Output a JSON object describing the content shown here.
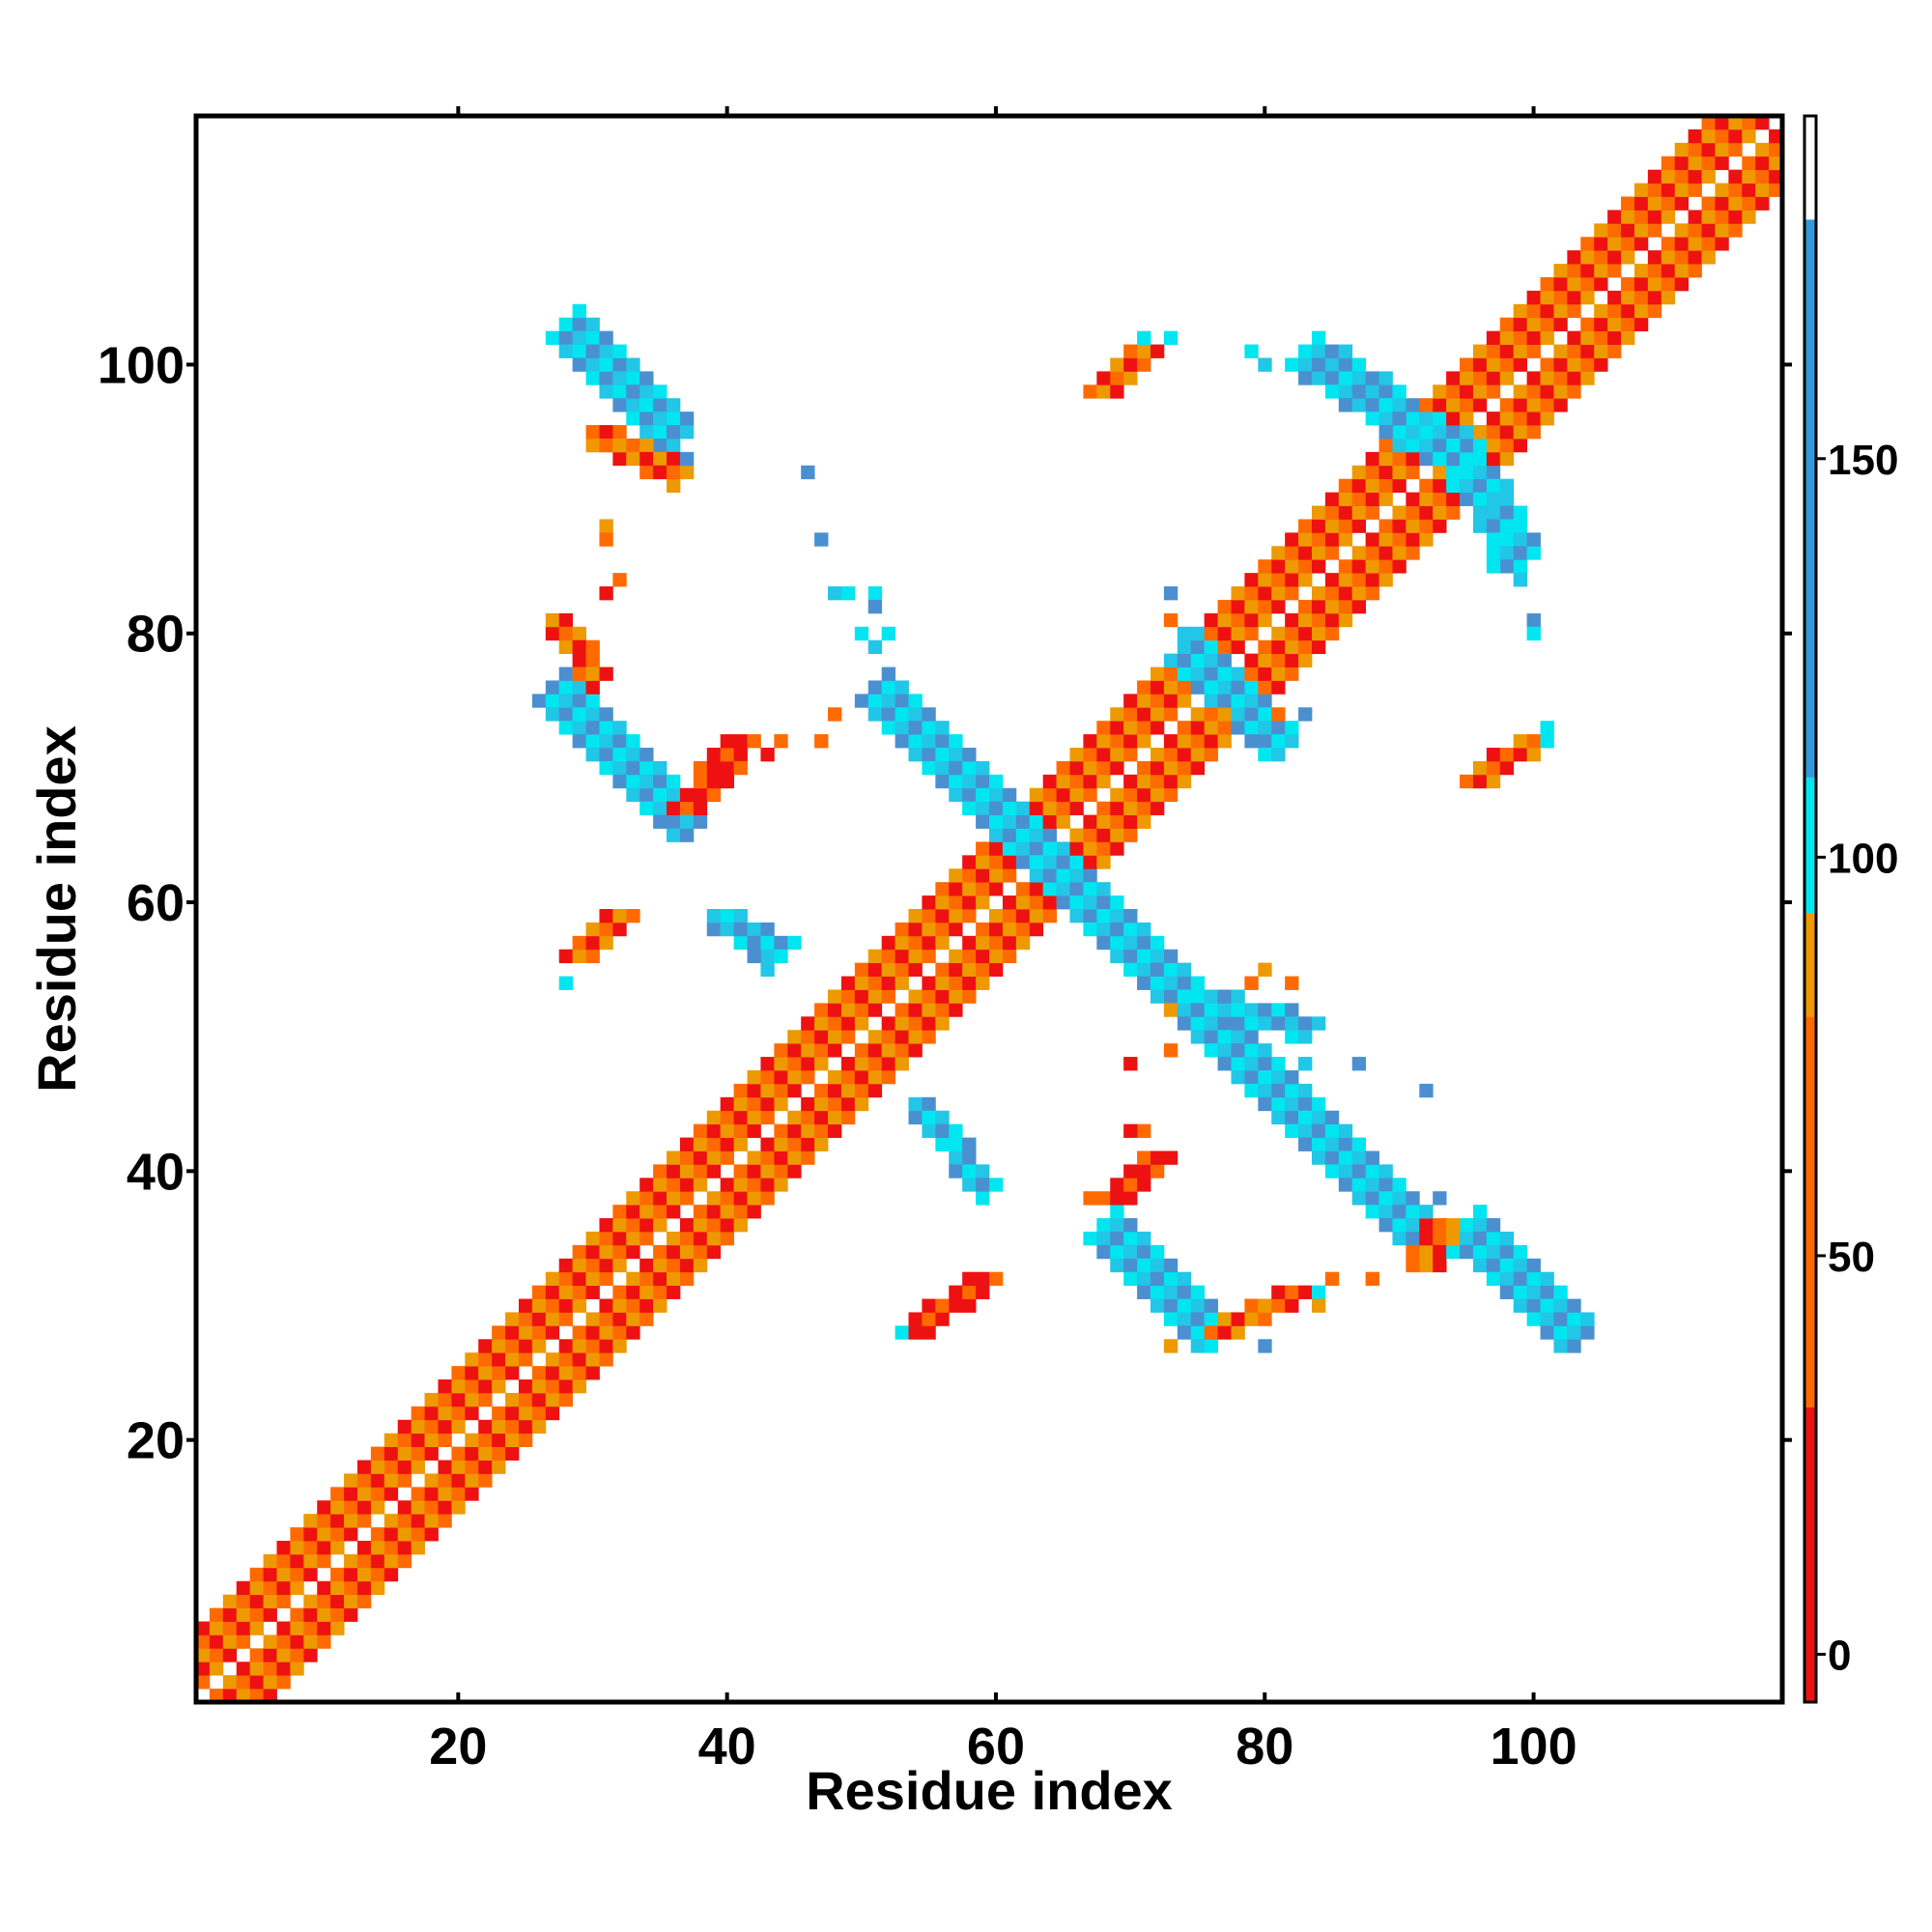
{
  "chart_data": {
    "type": "heatmap",
    "title": "",
    "xlabel": "Residue index",
    "ylabel": "Residue index",
    "xlim": [
      1,
      118
    ],
    "ylim": [
      1,
      118
    ],
    "xticks": [
      20,
      40,
      60,
      80,
      100
    ],
    "yticks": [
      20,
      40,
      60,
      80,
      100
    ],
    "colorbar": {
      "ticks": [
        0,
        50,
        100,
        150
      ],
      "range": [
        -6,
        193
      ],
      "stops": [
        {
          "from": -6,
          "to": 31,
          "color": "#ee1111"
        },
        {
          "from": 31,
          "to": 80,
          "color": "#ff6a00"
        },
        {
          "from": 80,
          "to": 93,
          "color": "#ee9900"
        },
        {
          "from": 93,
          "to": 110,
          "color": "#00e6f0"
        },
        {
          "from": 110,
          "to": 180,
          "color": "#3399dd"
        },
        {
          "from": 180,
          "to": 193,
          "color": "#ffffff"
        }
      ]
    },
    "palette": {
      "red": "#ee1111",
      "orange": "#ff6a00",
      "amber": "#ee9900",
      "cyan": "#00e6f0",
      "lightblue": "#22c6e6",
      "blue": "#4a90d0"
    },
    "segments": [
      {
        "x0": 1,
        "y0": 1,
        "x1": 118,
        "y1": 118,
        "w": 5,
        "colors": [
          "orange",
          "cyan",
          "red",
          "orange",
          "amber",
          "cyan"
        ]
      },
      {
        "x0": 28,
        "y0": 103,
        "x1": 36,
        "y1": 95,
        "w": 2,
        "colors": [
          "blue",
          "cyan",
          "lightblue"
        ]
      },
      {
        "x0": 27,
        "y0": 76,
        "x1": 37,
        "y1": 66,
        "w": 2,
        "colors": [
          "blue",
          "lightblue",
          "cyan"
        ]
      },
      {
        "x0": 51,
        "y0": 76,
        "x1": 93,
        "y1": 34,
        "w": 2,
        "colors": [
          "blue",
          "lightblue",
          "cyan"
        ]
      },
      {
        "x0": 68,
        "y0": 36,
        "x1": 76,
        "y1": 28,
        "w": 2,
        "colors": [
          "blue",
          "lightblue",
          "cyan"
        ]
      },
      {
        "x0": 95,
        "y0": 36,
        "x1": 103,
        "y1": 28,
        "w": 2,
        "colors": [
          "blue",
          "lightblue",
          "cyan"
        ]
      },
      {
        "x0": 94,
        "y0": 94,
        "x1": 99,
        "y1": 86,
        "w": 2,
        "colors": [
          "blue",
          "lightblue",
          "cyan"
        ]
      },
      {
        "x0": 83,
        "y0": 101,
        "x1": 93,
        "y1": 94,
        "w": 2,
        "colors": [
          "blue",
          "lightblue",
          "cyan"
        ]
      },
      {
        "x0": 74,
        "y0": 79,
        "x1": 81,
        "y1": 72,
        "w": 2,
        "colors": [
          "cyan",
          "blue",
          "lightblue"
        ]
      },
      {
        "x0": 39,
        "y0": 59,
        "x1": 44,
        "y1": 57,
        "w": 1,
        "colors": [
          "lightblue",
          "cyan",
          "blue"
        ]
      },
      {
        "x0": 54,
        "y0": 45,
        "x1": 59,
        "y1": 39,
        "w": 1,
        "colors": [
          "lightblue",
          "cyan",
          "blue"
        ]
      },
      {
        "x0": 75,
        "y0": 53,
        "x1": 83,
        "y1": 51,
        "w": 1,
        "colors": [
          "cyan",
          "lightblue",
          "blue"
        ]
      },
      {
        "x0": 30,
        "y0": 95,
        "x1": 36,
        "y1": 92,
        "w": 1,
        "colors": [
          "orange",
          "red",
          "amber"
        ]
      },
      {
        "x0": 27,
        "y0": 81,
        "x1": 30,
        "y1": 77,
        "w": 1,
        "colors": [
          "amber",
          "orange",
          "red"
        ]
      },
      {
        "x0": 37,
        "y0": 67,
        "x1": 41,
        "y1": 72,
        "w": 1,
        "colors": [
          "red",
          "orange",
          "red"
        ]
      },
      {
        "x0": 29,
        "y0": 56,
        "x1": 32,
        "y1": 59,
        "w": 1,
        "colors": [
          "red",
          "orange",
          "amber"
        ]
      },
      {
        "x0": 54,
        "y0": 28,
        "x1": 59,
        "y1": 32,
        "w": 1,
        "colors": [
          "red",
          "orange",
          "red"
        ]
      },
      {
        "x0": 69,
        "y0": 38,
        "x1": 72,
        "y1": 41,
        "w": 1,
        "colors": [
          "red",
          "orange",
          "red"
        ]
      },
      {
        "x0": 77,
        "y0": 28,
        "x1": 83,
        "y1": 31,
        "w": 1,
        "colors": [
          "orange",
          "amber",
          "red"
        ]
      },
      {
        "x0": 68,
        "y0": 98,
        "x1": 71,
        "y1": 101,
        "w": 1,
        "colors": [
          "orange",
          "red",
          "amber"
        ]
      },
      {
        "x0": 96,
        "y0": 69,
        "x1": 100,
        "y1": 72,
        "w": 1,
        "colors": [
          "red",
          "orange",
          "amber"
        ]
      },
      {
        "x0": 92,
        "y0": 33,
        "x1": 93,
        "y1": 36,
        "w": 1,
        "colors": [
          "orange",
          "red",
          "amber"
        ]
      }
    ],
    "cells": [
      {
        "x": 37,
        "y": 93,
        "c": "blue"
      },
      {
        "x": 46,
        "y": 92,
        "c": "blue"
      },
      {
        "x": 47,
        "y": 87,
        "c": "blue"
      },
      {
        "x": 31,
        "y": 88,
        "c": "amber"
      },
      {
        "x": 31,
        "y": 87,
        "c": "orange"
      },
      {
        "x": 32,
        "y": 84,
        "c": "orange"
      },
      {
        "x": 31,
        "y": 83,
        "c": "red"
      },
      {
        "x": 48,
        "y": 83,
        "c": "lightblue"
      },
      {
        "x": 49,
        "y": 83,
        "c": "cyan"
      },
      {
        "x": 51,
        "y": 83,
        "c": "cyan"
      },
      {
        "x": 51,
        "y": 82,
        "c": "blue"
      },
      {
        "x": 50,
        "y": 80,
        "c": "cyan"
      },
      {
        "x": 51,
        "y": 79,
        "c": "lightblue"
      },
      {
        "x": 52,
        "y": 80,
        "c": "cyan"
      },
      {
        "x": 48,
        "y": 74,
        "c": "orange"
      },
      {
        "x": 47,
        "y": 72,
        "c": "orange"
      },
      {
        "x": 44,
        "y": 72,
        "c": "orange"
      },
      {
        "x": 43,
        "y": 71,
        "c": "red"
      },
      {
        "x": 41,
        "y": 70,
        "c": "orange"
      },
      {
        "x": 36,
        "y": 66,
        "c": "blue"
      },
      {
        "x": 28,
        "y": 54,
        "c": "cyan"
      },
      {
        "x": 42,
        "y": 56,
        "c": "blue"
      },
      {
        "x": 43,
        "y": 55,
        "c": "lightblue"
      },
      {
        "x": 73,
        "y": 83,
        "c": "blue"
      },
      {
        "x": 73,
        "y": 81,
        "c": "orange"
      },
      {
        "x": 74,
        "y": 80,
        "c": "lightblue"
      },
      {
        "x": 77,
        "y": 74,
        "c": "amber"
      },
      {
        "x": 79,
        "y": 72,
        "c": "blue"
      },
      {
        "x": 81,
        "y": 74,
        "c": "orange"
      },
      {
        "x": 83,
        "y": 74,
        "c": "blue"
      },
      {
        "x": 71,
        "y": 102,
        "c": "cyan"
      },
      {
        "x": 73,
        "y": 102,
        "c": "cyan"
      },
      {
        "x": 79,
        "y": 101,
        "c": "cyan"
      },
      {
        "x": 80,
        "y": 100,
        "c": "lightblue"
      },
      {
        "x": 97,
        "y": 85,
        "c": "cyan"
      },
      {
        "x": 99,
        "y": 84,
        "c": "lightblue"
      },
      {
        "x": 100,
        "y": 81,
        "c": "blue"
      },
      {
        "x": 100,
        "y": 80,
        "c": "cyan"
      },
      {
        "x": 101,
        "y": 73,
        "c": "cyan"
      },
      {
        "x": 101,
        "y": 72,
        "c": "cyan"
      },
      {
        "x": 70,
        "y": 48,
        "c": "red"
      },
      {
        "x": 73,
        "y": 49,
        "c": "orange"
      },
      {
        "x": 73,
        "y": 52,
        "c": "amber"
      },
      {
        "x": 79,
        "y": 54,
        "c": "orange"
      },
      {
        "x": 80,
        "y": 55,
        "c": "amber"
      },
      {
        "x": 82,
        "y": 54,
        "c": "orange"
      },
      {
        "x": 84,
        "y": 51,
        "c": "lightblue"
      },
      {
        "x": 83,
        "y": 48,
        "c": "lightblue"
      },
      {
        "x": 87,
        "y": 48,
        "c": "blue"
      },
      {
        "x": 92,
        "y": 46,
        "c": "blue"
      },
      {
        "x": 93,
        "y": 38,
        "c": "blue"
      },
      {
        "x": 85,
        "y": 32,
        "c": "orange"
      },
      {
        "x": 88,
        "y": 32,
        "c": "orange"
      },
      {
        "x": 84,
        "y": 30,
        "c": "amber"
      },
      {
        "x": 84,
        "y": 31,
        "c": "cyan"
      },
      {
        "x": 76,
        "y": 27,
        "c": "cyan"
      },
      {
        "x": 80,
        "y": 27,
        "c": "blue"
      },
      {
        "x": 73,
        "y": 27,
        "c": "amber"
      },
      {
        "x": 53,
        "y": 28,
        "c": "cyan"
      },
      {
        "x": 60,
        "y": 32,
        "c": "orange"
      },
      {
        "x": 71,
        "y": 43,
        "c": "orange"
      },
      {
        "x": 70,
        "y": 43,
        "c": "red"
      },
      {
        "x": 67,
        "y": 38,
        "c": "orange"
      },
      {
        "x": 57,
        "y": 42,
        "c": "cyan"
      },
      {
        "x": 58,
        "y": 41,
        "c": "blue"
      }
    ]
  }
}
